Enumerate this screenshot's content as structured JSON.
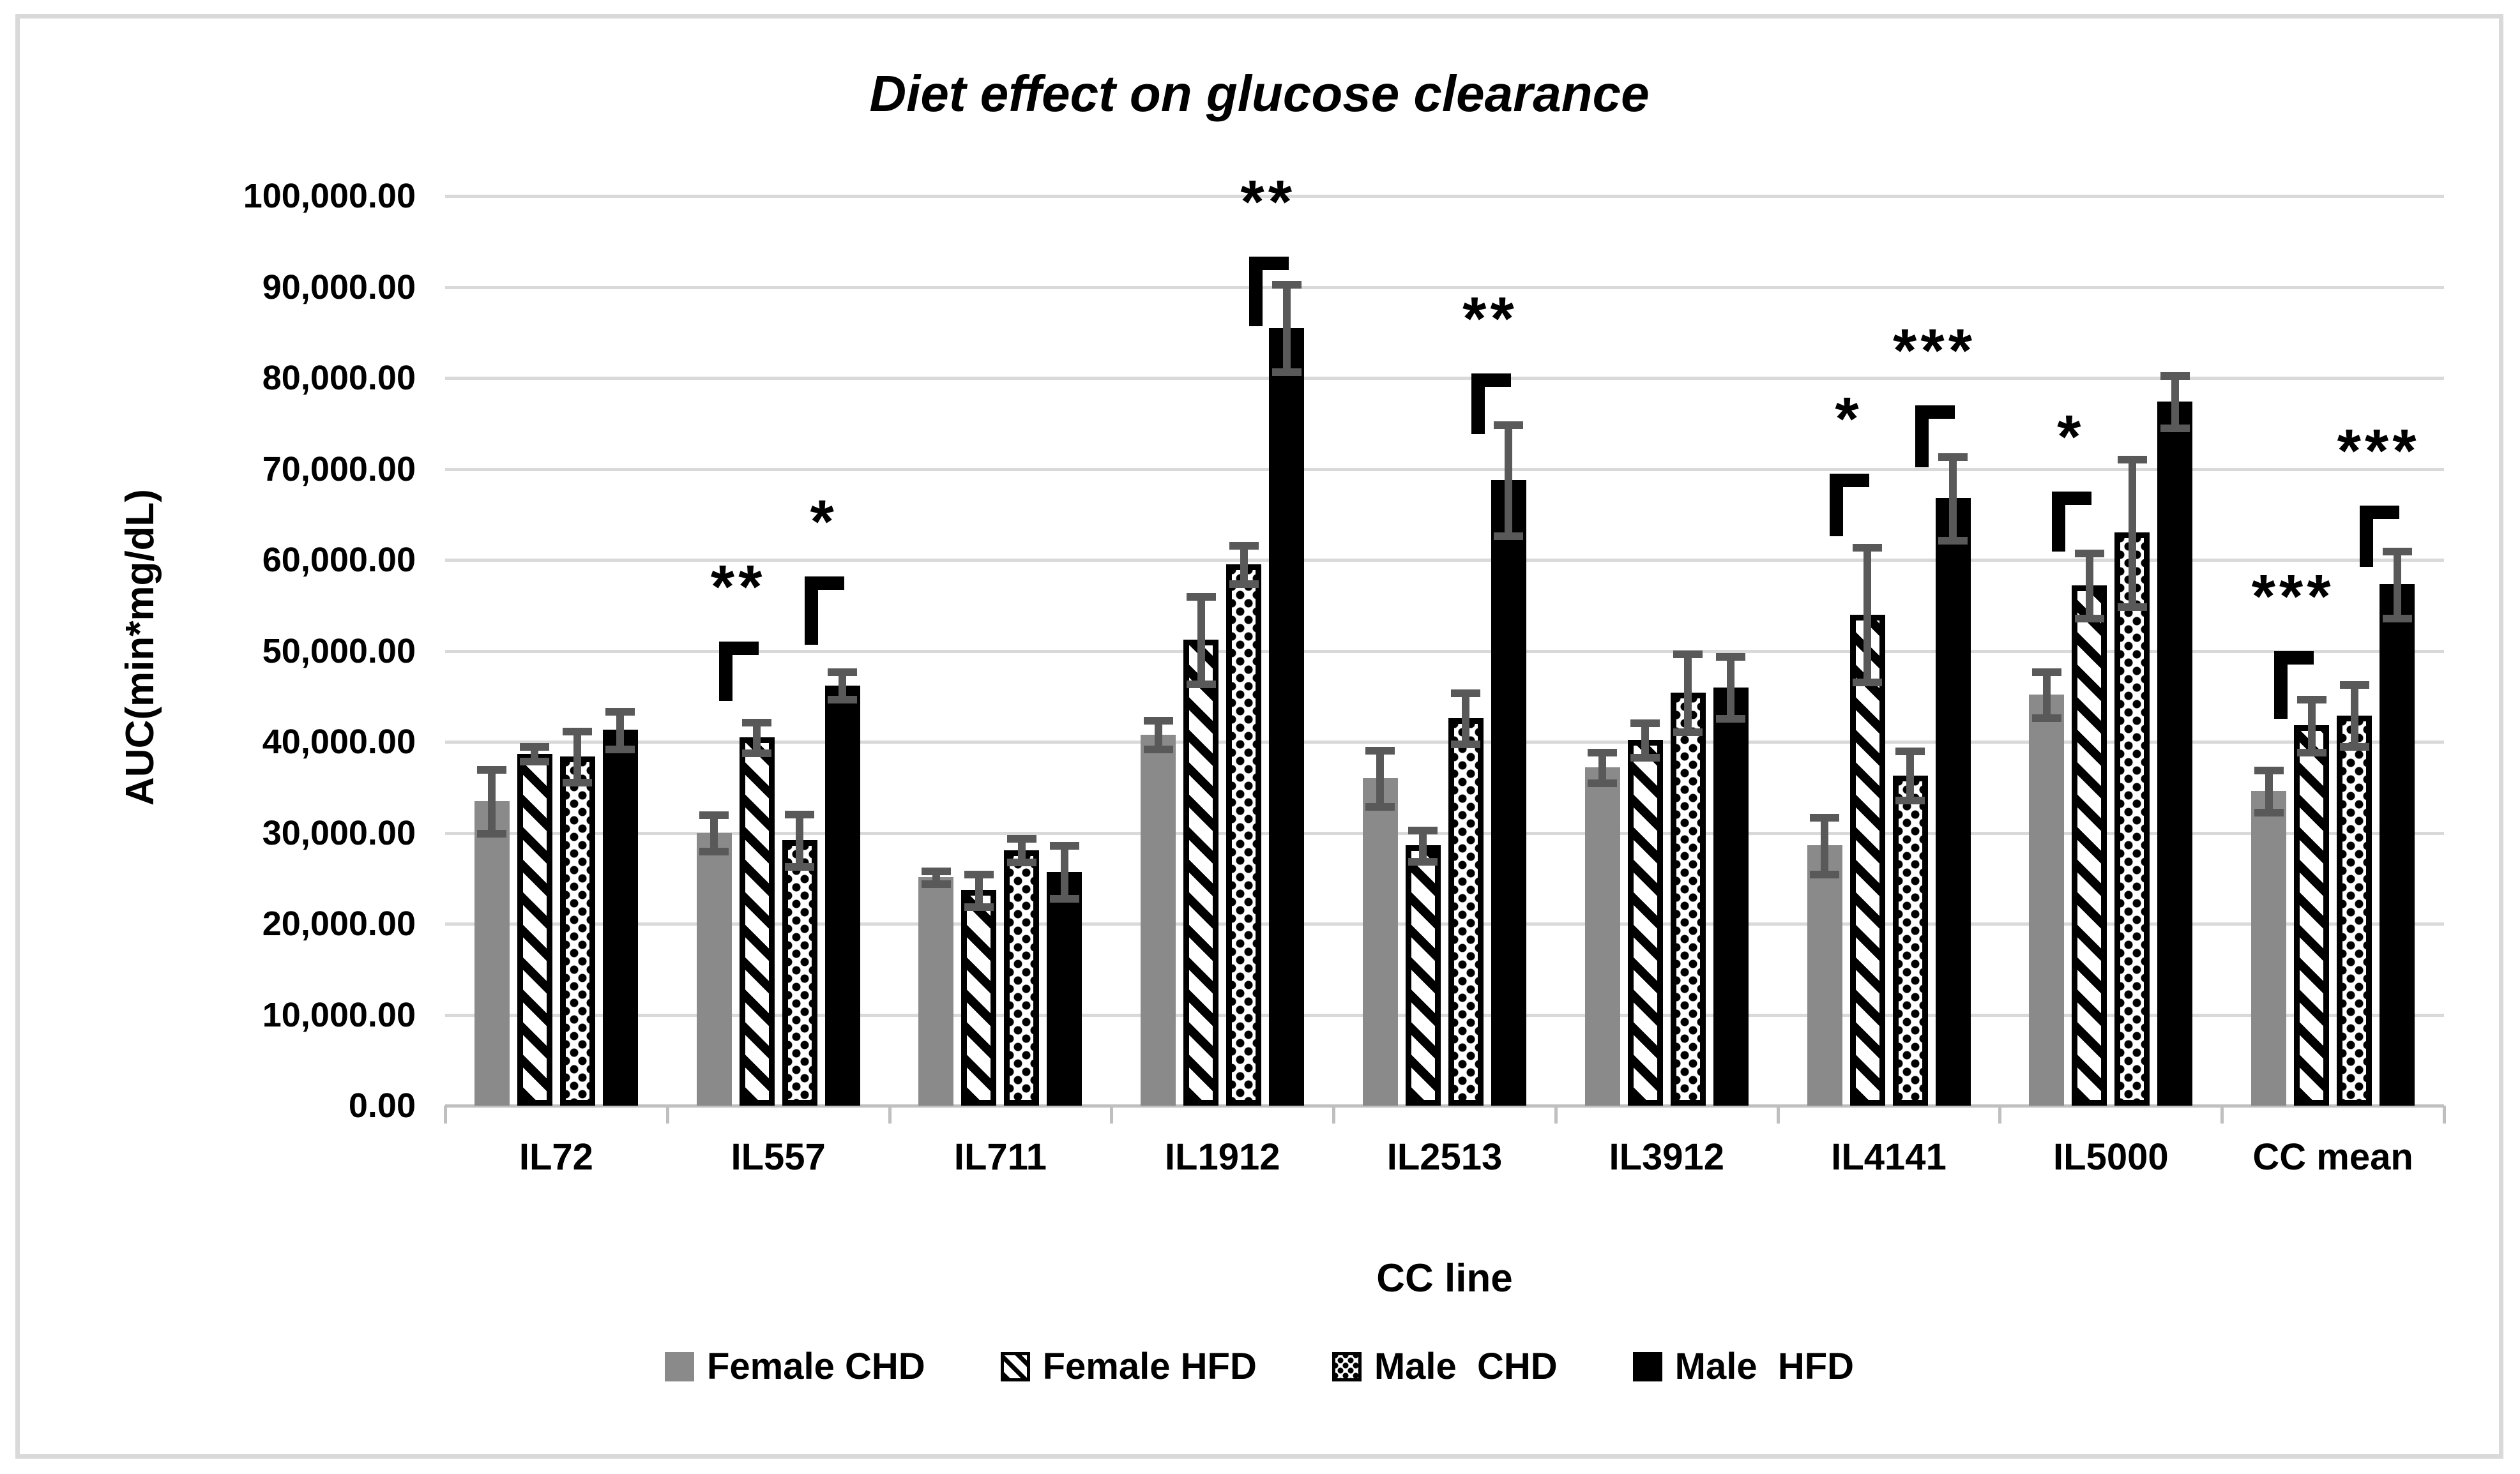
{
  "title": "Diet effect on glucose clearance",
  "y_axis": {
    "title": "AUC(min*mg/dL)",
    "tick_labels": [
      "0.00",
      "10,000.00",
      "20,000.00",
      "30,000.00",
      "40,000.00",
      "50,000.00",
      "60,000.00",
      "70,000.00",
      "80,000.00",
      "90,000.00",
      "100,000.00"
    ]
  },
  "x_axis": {
    "title": "CC line"
  },
  "colors": {
    "bar_gray": "#8a8a8a",
    "bar_black": "#000000",
    "error_bar": "#595959",
    "gridline": "#d9d9d9",
    "axis_line": "#bfbfbf",
    "figure_border": "#d9d9d9"
  },
  "chart_data": {
    "type": "bar",
    "title": "Diet effect on glucose clearance",
    "xlabel": "CC line",
    "ylabel": "AUC(min*mg/dL)",
    "ylim": [
      0,
      100000
    ],
    "ystep": 10000,
    "grid": true,
    "legend_position": "bottom",
    "categories": [
      "IL72",
      "IL557",
      "IL711",
      "IL1912",
      "IL2513",
      "IL3912",
      "IL4141",
      "IL5000",
      "CC mean"
    ],
    "series": [
      {
        "name": "Female CHD",
        "pattern": "solid-gray",
        "values": [
          33500,
          30000,
          25100,
          40800,
          36000,
          37200,
          28600,
          45200,
          34600
        ],
        "errors": [
          3500,
          2000,
          700,
          1600,
          3100,
          1700,
          3100,
          2500,
          2300
        ]
      },
      {
        "name": "Female HFD",
        "pattern": "diagonal-hatch",
        "values": [
          38700,
          40500,
          23700,
          51200,
          28600,
          40200,
          54000,
          57200,
          41800
        ],
        "errors": [
          800,
          1700,
          1800,
          4800,
          1700,
          1900,
          7400,
          3600,
          2900
        ]
      },
      {
        "name": "Male  CHD",
        "pattern": "dot-hatch",
        "values": [
          38400,
          29200,
          28100,
          59500,
          42600,
          45400,
          36300,
          63000,
          42900
        ],
        "errors": [
          2800,
          2900,
          1300,
          2100,
          2800,
          4300,
          2700,
          8100,
          3400
        ]
      },
      {
        "name": "Male  HFD",
        "pattern": "solid-black",
        "values": [
          41300,
          46200,
          25700,
          85500,
          68800,
          46000,
          66800,
          77400,
          57300
        ],
        "errors": [
          2100,
          1500,
          2900,
          4800,
          6100,
          3400,
          4600,
          2900,
          3700
        ]
      }
    ],
    "annotations": [
      {
        "category": "IL557",
        "pair": "female",
        "label": "**",
        "bracket_top": 51000,
        "drop": 6500
      },
      {
        "category": "IL557",
        "pair": "male",
        "label": "*",
        "bracket_top": 58200,
        "drop": 7500
      },
      {
        "category": "IL1912",
        "pair": "male",
        "label": "**",
        "bracket_top": 93300,
        "drop": 7600
      },
      {
        "category": "IL2513",
        "pair": "male",
        "label": "**",
        "bracket_top": 80500,
        "drop": 6700
      },
      {
        "category": "IL4141",
        "pair": "female",
        "label": "*",
        "bracket_top": 69500,
        "drop": 6900
      },
      {
        "category": "IL4141",
        "pair": "male",
        "label": "***",
        "bracket_top": 77000,
        "drop": 6800
      },
      {
        "category": "IL5000",
        "pair": "female",
        "label": "*",
        "bracket_top": 67500,
        "drop": 6600
      },
      {
        "category": "CC mean",
        "pair": "female",
        "label": "***",
        "bracket_top": 50000,
        "drop": 7500
      },
      {
        "category": "CC mean",
        "pair": "male",
        "label": "***",
        "bracket_top": 66000,
        "drop": 6800
      }
    ]
  }
}
